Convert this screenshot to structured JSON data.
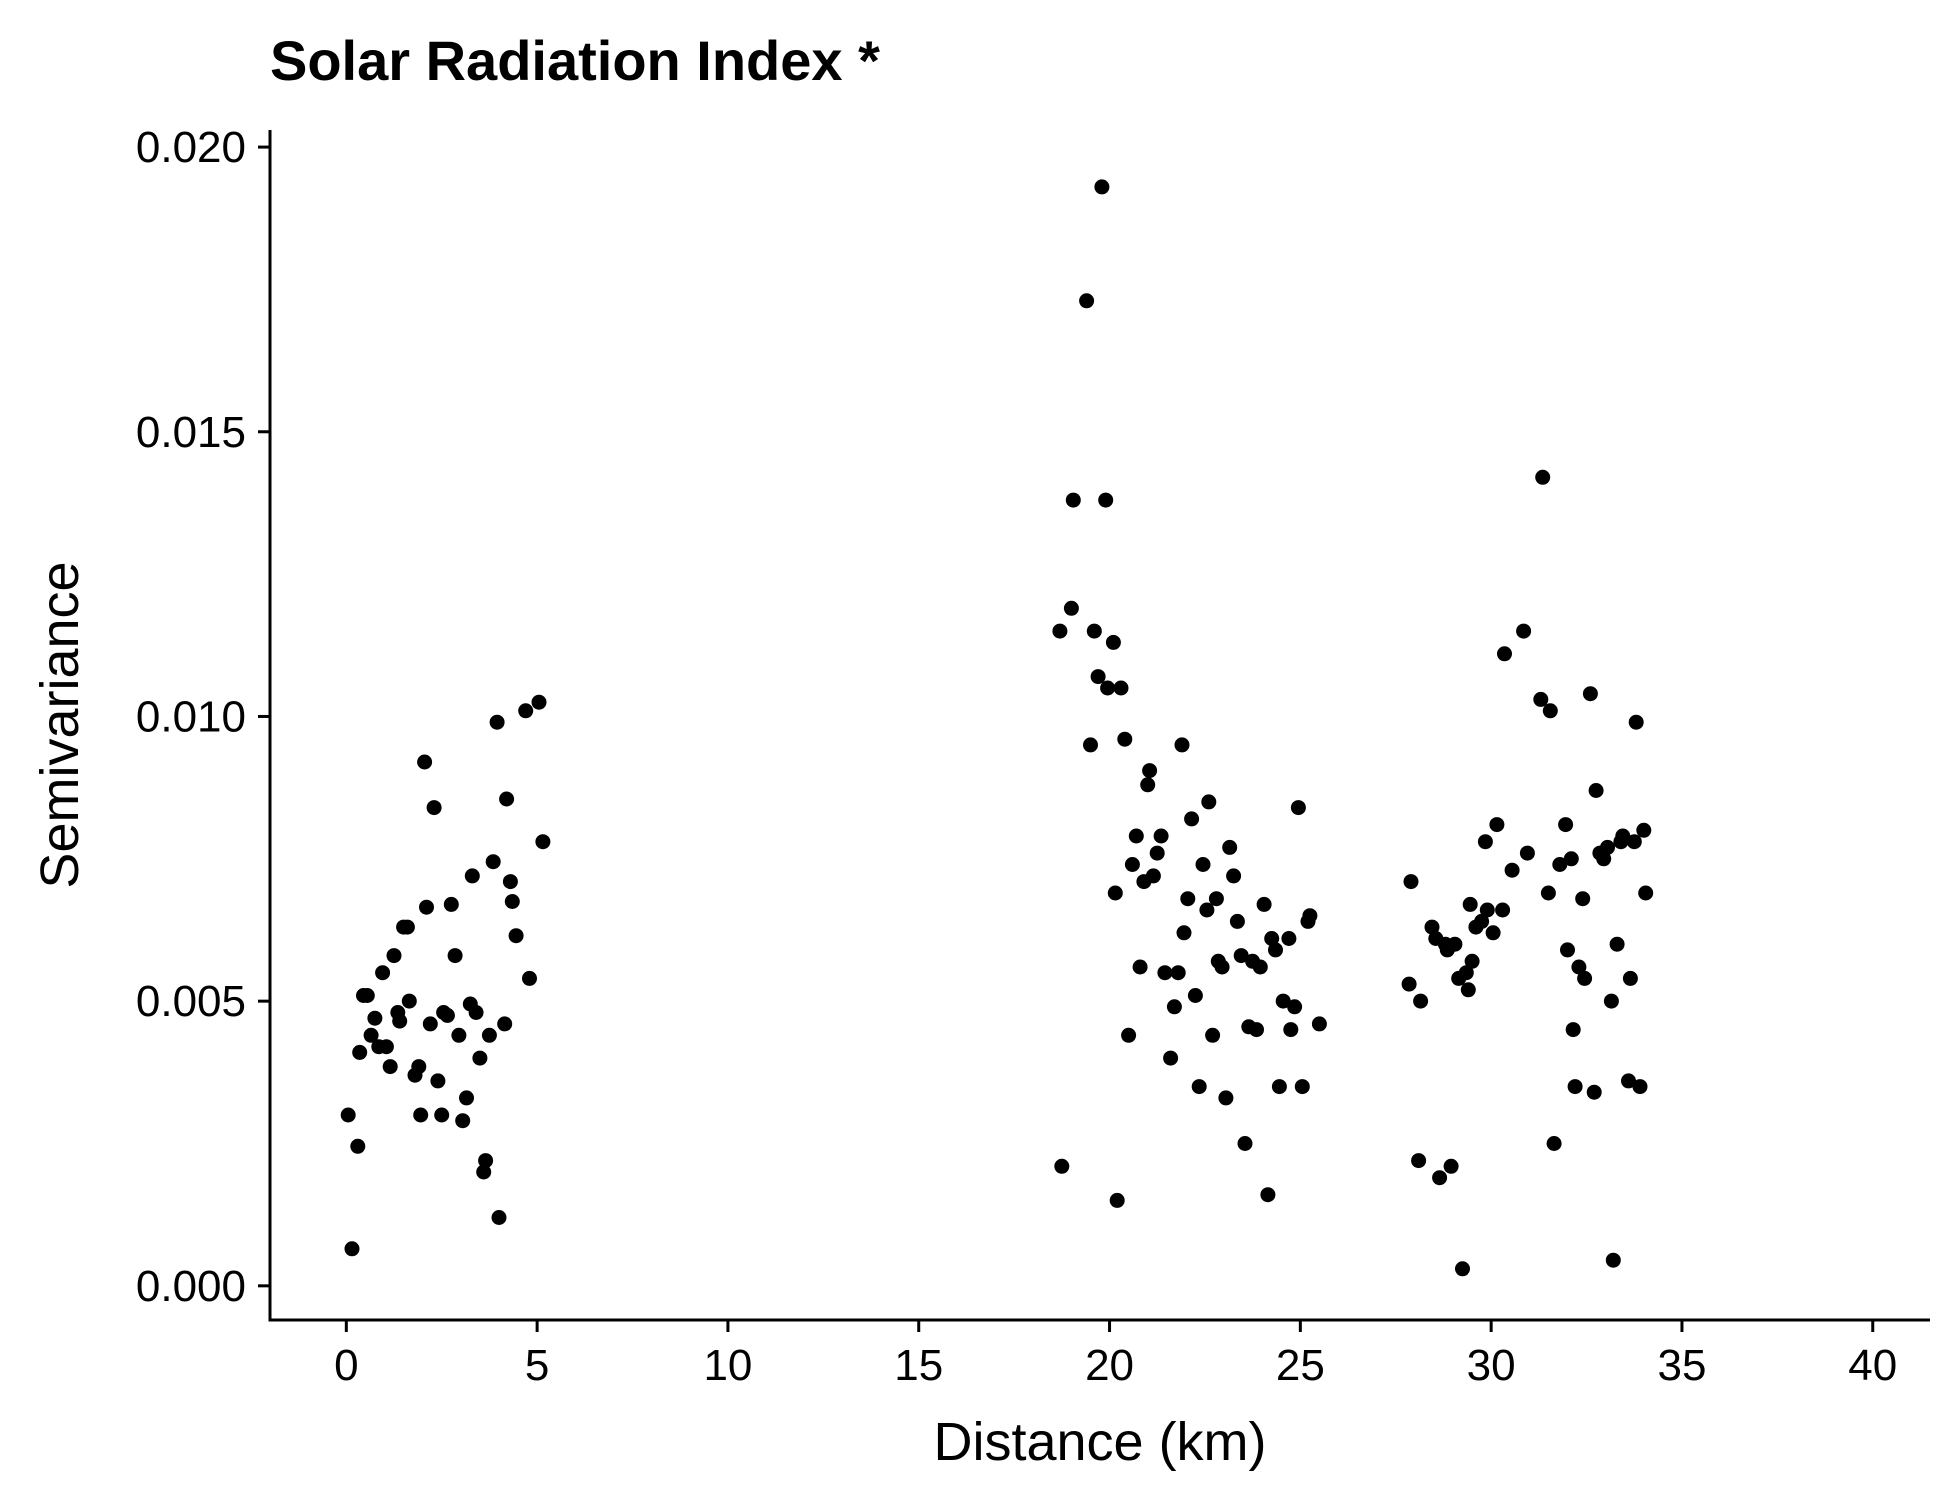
{
  "chart_data": {
    "type": "scatter",
    "title": "Solar Radiation Index *",
    "xlabel": "Distance (km)",
    "ylabel": "Semivariance",
    "xlim": [
      -2,
      41.5
    ],
    "ylim": [
      -0.0006,
      0.0203
    ],
    "xticks": [
      0,
      5,
      10,
      15,
      20,
      25,
      30,
      35,
      40
    ],
    "xtick_labels": [
      "0",
      "5",
      "10",
      "15",
      "20",
      "25",
      "30",
      "35",
      "40"
    ],
    "yticks": [
      0.0,
      0.005,
      0.01,
      0.015,
      0.02
    ],
    "ytick_labels": [
      "0.000",
      "0.005",
      "0.010",
      "0.015",
      "0.020"
    ],
    "grid": false,
    "legend": "none",
    "point_color": "#000000",
    "points": [
      [
        0.05,
        0.003
      ],
      [
        0.15,
        0.00065
      ],
      [
        0.3,
        0.00245
      ],
      [
        0.35,
        0.0041
      ],
      [
        0.45,
        0.0051
      ],
      [
        0.55,
        0.0051
      ],
      [
        0.65,
        0.0044
      ],
      [
        0.75,
        0.0047
      ],
      [
        0.85,
        0.0042
      ],
      [
        0.95,
        0.0055
      ],
      [
        1.05,
        0.0042
      ],
      [
        1.15,
        0.00385
      ],
      [
        1.25,
        0.0058
      ],
      [
        1.35,
        0.0048
      ],
      [
        1.4,
        0.00465
      ],
      [
        1.5,
        0.0063
      ],
      [
        1.6,
        0.0063
      ],
      [
        1.65,
        0.005
      ],
      [
        1.8,
        0.0037
      ],
      [
        1.9,
        0.00385
      ],
      [
        1.95,
        0.003
      ],
      [
        2.05,
        0.0092
      ],
      [
        2.1,
        0.00665
      ],
      [
        2.2,
        0.0046
      ],
      [
        2.3,
        0.0084
      ],
      [
        2.4,
        0.0036
      ],
      [
        2.5,
        0.003
      ],
      [
        2.55,
        0.0048
      ],
      [
        2.65,
        0.00475
      ],
      [
        2.75,
        0.0067
      ],
      [
        2.85,
        0.0058
      ],
      [
        2.95,
        0.0044
      ],
      [
        3.05,
        0.0029
      ],
      [
        3.15,
        0.0033
      ],
      [
        3.25,
        0.00495
      ],
      [
        3.3,
        0.0072
      ],
      [
        3.4,
        0.0048
      ],
      [
        3.5,
        0.004
      ],
      [
        3.6,
        0.002
      ],
      [
        3.65,
        0.0022
      ],
      [
        3.75,
        0.0044
      ],
      [
        3.85,
        0.00745
      ],
      [
        3.95,
        0.0099
      ],
      [
        4.0,
        0.0012
      ],
      [
        4.15,
        0.0046
      ],
      [
        4.2,
        0.00855
      ],
      [
        4.3,
        0.0071
      ],
      [
        4.35,
        0.00675
      ],
      [
        4.45,
        0.00615
      ],
      [
        4.7,
        0.0101
      ],
      [
        4.8,
        0.0054
      ],
      [
        5.05,
        0.01025
      ],
      [
        5.15,
        0.0078
      ],
      [
        18.7,
        0.0115
      ],
      [
        18.75,
        0.0021
      ],
      [
        19.0,
        0.0119
      ],
      [
        19.05,
        0.0138
      ],
      [
        19.4,
        0.0173
      ],
      [
        19.5,
        0.0095
      ],
      [
        19.6,
        0.0115
      ],
      [
        19.7,
        0.0107
      ],
      [
        19.8,
        0.0193
      ],
      [
        19.9,
        0.0138
      ],
      [
        19.95,
        0.0105
      ],
      [
        20.1,
        0.0113
      ],
      [
        20.15,
        0.0069
      ],
      [
        20.2,
        0.0015
      ],
      [
        20.3,
        0.0105
      ],
      [
        20.4,
        0.0096
      ],
      [
        20.5,
        0.0044
      ],
      [
        20.6,
        0.0074
      ],
      [
        20.7,
        0.0079
      ],
      [
        20.8,
        0.0056
      ],
      [
        20.9,
        0.0071
      ],
      [
        21.0,
        0.0088
      ],
      [
        21.05,
        0.00905
      ],
      [
        21.15,
        0.0072
      ],
      [
        21.25,
        0.0076
      ],
      [
        21.35,
        0.0079
      ],
      [
        21.45,
        0.0055
      ],
      [
        21.6,
        0.004
      ],
      [
        21.7,
        0.0049
      ],
      [
        21.8,
        0.0055
      ],
      [
        21.9,
        0.0095
      ],
      [
        21.95,
        0.0062
      ],
      [
        22.05,
        0.0068
      ],
      [
        22.15,
        0.0082
      ],
      [
        22.25,
        0.0051
      ],
      [
        22.35,
        0.0035
      ],
      [
        22.45,
        0.0074
      ],
      [
        22.55,
        0.0066
      ],
      [
        22.6,
        0.0085
      ],
      [
        22.7,
        0.0044
      ],
      [
        22.8,
        0.0068
      ],
      [
        22.85,
        0.0057
      ],
      [
        22.95,
        0.0056
      ],
      [
        23.05,
        0.0033
      ],
      [
        23.15,
        0.0077
      ],
      [
        23.25,
        0.0072
      ],
      [
        23.35,
        0.0064
      ],
      [
        23.45,
        0.0058
      ],
      [
        23.55,
        0.0025
      ],
      [
        23.65,
        0.00455
      ],
      [
        23.75,
        0.0057
      ],
      [
        23.85,
        0.0045
      ],
      [
        23.95,
        0.0056
      ],
      [
        24.05,
        0.0067
      ],
      [
        24.15,
        0.0016
      ],
      [
        24.25,
        0.0061
      ],
      [
        24.35,
        0.0059
      ],
      [
        24.45,
        0.0035
      ],
      [
        24.55,
        0.005
      ],
      [
        24.7,
        0.0061
      ],
      [
        24.75,
        0.0045
      ],
      [
        24.85,
        0.0049
      ],
      [
        24.95,
        0.0084
      ],
      [
        25.05,
        0.0035
      ],
      [
        25.2,
        0.0064
      ],
      [
        25.25,
        0.0065
      ],
      [
        25.5,
        0.0046
      ],
      [
        27.85,
        0.0053
      ],
      [
        27.9,
        0.0071
      ],
      [
        28.1,
        0.0022
      ],
      [
        28.15,
        0.005
      ],
      [
        28.45,
        0.0063
      ],
      [
        28.55,
        0.0061
      ],
      [
        28.65,
        0.0019
      ],
      [
        28.8,
        0.006
      ],
      [
        28.85,
        0.0059
      ],
      [
        28.95,
        0.0021
      ],
      [
        29.05,
        0.006
      ],
      [
        29.15,
        0.0054
      ],
      [
        29.25,
        0.0003
      ],
      [
        29.35,
        0.0055
      ],
      [
        29.4,
        0.0052
      ],
      [
        29.45,
        0.0067
      ],
      [
        29.5,
        0.0057
      ],
      [
        29.6,
        0.0063
      ],
      [
        29.75,
        0.0064
      ],
      [
        29.85,
        0.0078
      ],
      [
        29.9,
        0.0066
      ],
      [
        30.05,
        0.0062
      ],
      [
        30.15,
        0.0081
      ],
      [
        30.3,
        0.0066
      ],
      [
        30.35,
        0.0111
      ],
      [
        30.55,
        0.0073
      ],
      [
        30.85,
        0.0115
      ],
      [
        30.95,
        0.0076
      ],
      [
        31.3,
        0.0103
      ],
      [
        31.35,
        0.0142
      ],
      [
        31.5,
        0.0069
      ],
      [
        31.55,
        0.0101
      ],
      [
        31.65,
        0.0025
      ],
      [
        31.8,
        0.0074
      ],
      [
        31.95,
        0.0081
      ],
      [
        32.0,
        0.0059
      ],
      [
        32.1,
        0.0075
      ],
      [
        32.15,
        0.0045
      ],
      [
        32.2,
        0.0035
      ],
      [
        32.3,
        0.0056
      ],
      [
        32.4,
        0.0068
      ],
      [
        32.45,
        0.0054
      ],
      [
        32.6,
        0.0104
      ],
      [
        32.7,
        0.0034
      ],
      [
        32.75,
        0.0087
      ],
      [
        32.85,
        0.0076
      ],
      [
        32.95,
        0.0075
      ],
      [
        33.05,
        0.0077
      ],
      [
        33.15,
        0.005
      ],
      [
        33.2,
        0.00045
      ],
      [
        33.3,
        0.006
      ],
      [
        33.4,
        0.0078
      ],
      [
        33.45,
        0.0079
      ],
      [
        33.6,
        0.0036
      ],
      [
        33.65,
        0.0054
      ],
      [
        33.75,
        0.0078
      ],
      [
        33.8,
        0.0099
      ],
      [
        33.9,
        0.0035
      ],
      [
        34.0,
        0.008
      ],
      [
        34.05,
        0.0069
      ]
    ]
  }
}
